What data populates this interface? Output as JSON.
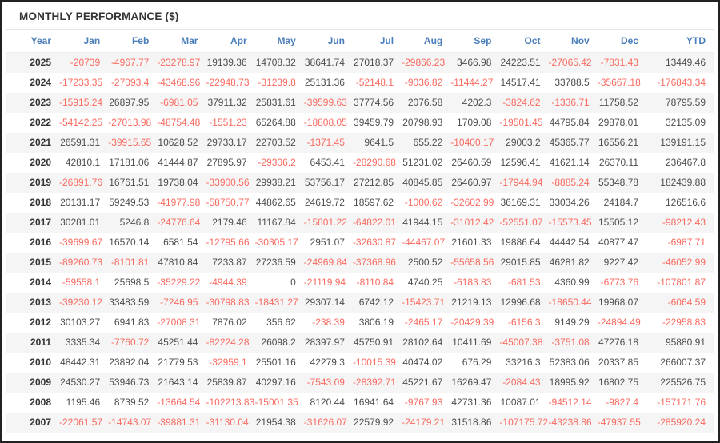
{
  "title": "MONTHLY PERFORMANCE ($)",
  "colors": {
    "header_text": "#4a7ebb",
    "negative_value": "#f96a5f",
    "positive_value": "#4d4d4d",
    "year_text": "#333333",
    "row_stripe": "#f5f5f5",
    "frame_border": "#222222"
  },
  "table": {
    "columns": [
      "Year",
      "Jan",
      "Feb",
      "Mar",
      "Apr",
      "May",
      "Jun",
      "Jul",
      "Aug",
      "Sep",
      "Oct",
      "Nov",
      "Dec",
      "YTD"
    ],
    "rows": [
      [
        "2025",
        "-20739",
        "-4967.77",
        "-23278.97",
        "19139.36",
        "14708.32",
        "38641.74",
        "27018.37",
        "-29866.23",
        "3466.98",
        "24223.51",
        "-27065.42",
        "-7831.43",
        "13449.46"
      ],
      [
        "2024",
        "-17233.35",
        "-27093.4",
        "-43468.96",
        "-22948.73",
        "-31239.8",
        "25131.36",
        "-52148.1",
        "-9036.82",
        "-11444.27",
        "14517.41",
        "33788.5",
        "-35667.18",
        "-176843.34"
      ],
      [
        "2023",
        "-15915.24",
        "26897.95",
        "-6981.05",
        "37911.32",
        "25831.61",
        "-39599.63",
        "37774.56",
        "2076.58",
        "4202.3",
        "-3824.62",
        "-1336.71",
        "11758.52",
        "78795.59"
      ],
      [
        "2022",
        "-54142.25",
        "-27013.98",
        "-48754.48",
        "-1551.23",
        "65264.88",
        "-18808.05",
        "39459.79",
        "20798.93",
        "1709.08",
        "-19501.45",
        "44795.84",
        "29878.01",
        "32135.09"
      ],
      [
        "2021",
        "26591.31",
        "-39915.65",
        "10628.52",
        "29733.17",
        "22703.52",
        "-1371.45",
        "9641.5",
        "655.22",
        "-10400.17",
        "29003.2",
        "45365.77",
        "16556.21",
        "139191.15"
      ],
      [
        "2020",
        "42810.1",
        "17181.06",
        "41444.87",
        "27895.97",
        "-29306.2",
        "6453.41",
        "-28290.68",
        "51231.02",
        "26460.59",
        "12596.41",
        "41621.14",
        "26370.11",
        "236467.8"
      ],
      [
        "2019",
        "-26891.76",
        "16761.51",
        "19738.04",
        "-33900.56",
        "29938.21",
        "53756.17",
        "27212.85",
        "40845.85",
        "26460.97",
        "-17944.94",
        "-8885.24",
        "55348.78",
        "182439.88"
      ],
      [
        "2018",
        "20131.17",
        "59249.53",
        "-41977.98",
        "-58750.77",
        "44862.65",
        "24619.72",
        "18597.62",
        "-1000.62",
        "-32602.99",
        "36169.31",
        "33034.26",
        "24184.7",
        "126516.6"
      ],
      [
        "2017",
        "30281.01",
        "5246.8",
        "-24776.64",
        "2179.46",
        "11167.84",
        "-15801.22",
        "-64822.01",
        "41944.15",
        "-31012.42",
        "-52551.07",
        "-15573.45",
        "15505.12",
        "-98212.43"
      ],
      [
        "2016",
        "-39699.67",
        "16570.14",
        "6581.54",
        "-12795.66",
        "-30305.17",
        "2951.07",
        "-32630.87",
        "-44467.07",
        "21601.33",
        "19886.64",
        "44442.54",
        "40877.47",
        "-6987.71"
      ],
      [
        "2015",
        "-89260.73",
        "-8101.81",
        "47810.84",
        "7233.87",
        "27236.59",
        "-24969.84",
        "-37368.96",
        "2500.52",
        "-55658.56",
        "29015.85",
        "46281.82",
        "9227.42",
        "-46052.99"
      ],
      [
        "2014",
        "-59558.1",
        "25698.5",
        "-35229.22",
        "-4944.39",
        "0",
        "-21119.94",
        "-8110.84",
        "4740.25",
        "-6183.83",
        "-681.53",
        "4360.99",
        "-6773.76",
        "-107801.87"
      ],
      [
        "2013",
        "-39230.12",
        "33483.59",
        "-7246.95",
        "-30798.83",
        "-18431.27",
        "29307.14",
        "6742.12",
        "-15423.71",
        "21219.13",
        "12996.68",
        "-18650.44",
        "19968.07",
        "-6064.59"
      ],
      [
        "2012",
        "30103.27",
        "6941.83",
        "-27008.31",
        "7876.02",
        "356.62",
        "-238.39",
        "3806.19",
        "-2465.17",
        "-20429.39",
        "-6156.3",
        "9149.29",
        "-24894.49",
        "-22958.83"
      ],
      [
        "2011",
        "3335.34",
        "-7760.72",
        "45251.44",
        "-82224.28",
        "26098.2",
        "28397.97",
        "45750.91",
        "28102.64",
        "10411.69",
        "-45007.38",
        "-3751.08",
        "47276.18",
        "95880.91"
      ],
      [
        "2010",
        "48442.31",
        "23892.04",
        "21779.53",
        "-32959.1",
        "25501.16",
        "42279.3",
        "-10015.39",
        "40474.02",
        "676.29",
        "33216.3",
        "52383.06",
        "20337.85",
        "266007.37"
      ],
      [
        "2009",
        "24530.27",
        "53946.73",
        "21643.14",
        "25839.87",
        "40297.16",
        "-7543.09",
        "-28392.71",
        "45221.67",
        "16269.47",
        "-2084.43",
        "18995.92",
        "16802.75",
        "225526.75"
      ],
      [
        "2008",
        "1195.46",
        "8739.52",
        "-13664.54",
        "-102213.83",
        "-15001.35",
        "8120.44",
        "16941.64",
        "-9767.93",
        "42731.36",
        "10087.01",
        "-94512.14",
        "-9827.4",
        "-157171.76"
      ],
      [
        "2007",
        "-22061.57",
        "-14743.07",
        "-39881.31",
        "-31130.04",
        "21954.38",
        "-31626.07",
        "22579.92",
        "-24179.21",
        "31518.86",
        "-107175.72",
        "-43238.86",
        "-47937.55",
        "-285920.24"
      ]
    ]
  }
}
